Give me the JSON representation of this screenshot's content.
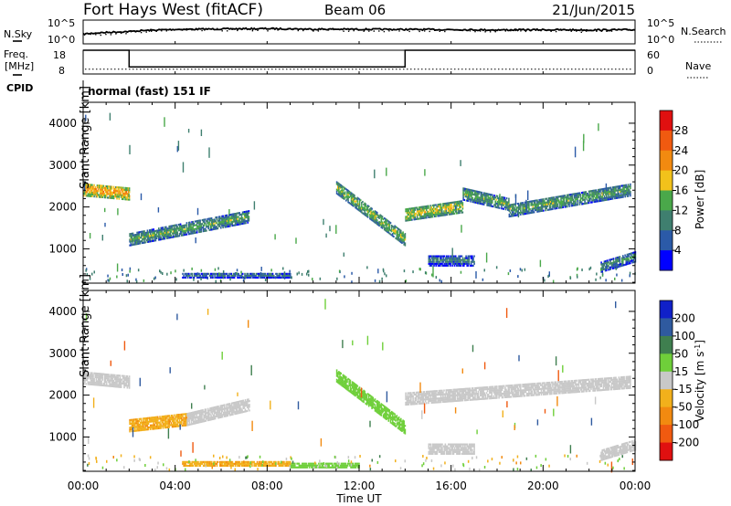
{
  "header": {
    "station": "Fort Hays West (fitACF)",
    "beam": "Beam 06",
    "date": "21/Jun/2015"
  },
  "noise_panel": {
    "left_label": "N.Sky",
    "right_label": "N.Search",
    "left_ticks": [
      "10^5",
      "10^0"
    ],
    "right_ticks": [
      "10^5",
      "10^0"
    ]
  },
  "freq_panel": {
    "label_line1": "Freq.",
    "label_line2": "[MHz]",
    "right_label": "Nave",
    "left_ticks": [
      "18",
      "8"
    ],
    "right_ticks": [
      "60",
      "0"
    ]
  },
  "cpid": {
    "label": "CPID",
    "mode": "normal (fast) 151 IF"
  },
  "power_panel": {
    "ylabel": "Slant Range [km]",
    "y_ticks": [
      "1000",
      "2000",
      "3000",
      "4000"
    ],
    "colorbar_label": "Power [dB]",
    "colorbar_ticks": [
      "4",
      "8",
      "12",
      "16",
      "20",
      "24",
      "28"
    ]
  },
  "velocity_panel": {
    "ylabel": "Slant Range [km]",
    "y_ticks": [
      "1000",
      "2000",
      "3000",
      "4000"
    ],
    "colorbar_label": "Velocity [m s^-1]",
    "colorbar_ticks": [
      "-200",
      "-100",
      "-50",
      "-15",
      "15",
      "50",
      "100",
      "200"
    ]
  },
  "x_axis": {
    "label": "Time UT",
    "ticks": [
      "00:00",
      "04:00",
      "08:00",
      "12:00",
      "16:00",
      "20:00",
      "00:00"
    ]
  },
  "colors": {
    "power_scale": [
      "#0000ff",
      "#2b5aa8",
      "#3f7f6f",
      "#4aa84a",
      "#f2c21b",
      "#f28a10",
      "#f05a10",
      "#e01010"
    ],
    "velocity_scale": [
      "#e01010",
      "#f05a10",
      "#f28a10",
      "#f2b01b",
      "#c8c8c8",
      "#6fcf3a",
      "#3f7f4f",
      "#2f5a9f",
      "#1020c8"
    ]
  },
  "chart_data": [
    {
      "type": "line",
      "title": "N.Sky / N.Search",
      "x": [
        "00:00",
        "02:00",
        "04:00",
        "06:00",
        "08:00",
        "10:00",
        "12:00",
        "14:00",
        "16:00",
        "18:00",
        "20:00",
        "22:00",
        "24:00"
      ],
      "series": [
        {
          "name": "N.Sky",
          "values": [
            100,
            400,
            1200,
            1500,
            1800,
            1400,
            1300,
            1200,
            1100,
            900,
            1000,
            900,
            1000
          ]
        },
        {
          "name": "N.Search",
          "values": [
            80,
            300,
            900,
            1300,
            1600,
            1200,
            1100,
            1000,
            900,
            800,
            850,
            700,
            800
          ]
        }
      ],
      "yscale": "log",
      "ylim": [
        1,
        100000
      ]
    },
    {
      "type": "line",
      "title": "Freq. / Nave",
      "series": [
        {
          "name": "Freq.",
          "x": [
            "00:00",
            "02:00",
            "02:00",
            "14:00",
            "14:00",
            "24:00"
          ],
          "values": [
            18,
            18,
            11,
            11,
            18,
            18
          ]
        },
        {
          "name": "Nave",
          "x": [
            "00:00",
            "24:00"
          ],
          "values": [
            12,
            12
          ]
        }
      ],
      "ylim": [
        8,
        18
      ],
      "y2lim": [
        0,
        60
      ]
    },
    {
      "type": "heatmap",
      "title": "Power",
      "xlabel": "Time UT",
      "ylabel": "Slant Range [km]",
      "xlim": [
        0,
        24
      ],
      "ylim": [
        180,
        4500
      ],
      "colorbar": {
        "label": "Power [dB]",
        "range": [
          0,
          32
        ],
        "ticks": [
          4,
          8,
          12,
          16,
          20,
          24,
          28
        ]
      },
      "echo_bands": [
        {
          "t_start": 0.0,
          "t_end": 2.0,
          "range_start_km": 2400,
          "range_end_km": 2300,
          "width_km": 300,
          "power_db": 22
        },
        {
          "t_start": 2.0,
          "t_end": 7.2,
          "range_start_km": 1200,
          "range_end_km": 1750,
          "width_km": 280,
          "power_db": 14
        },
        {
          "t_start": 11.0,
          "t_end": 14.0,
          "range_start_km": 2450,
          "range_end_km": 1200,
          "width_km": 300,
          "power_db": 16
        },
        {
          "t_start": 14.0,
          "t_end": 16.5,
          "range_start_km": 1800,
          "range_end_km": 2000,
          "width_km": 300,
          "power_db": 18
        },
        {
          "t_start": 16.5,
          "t_end": 18.5,
          "range_start_km": 2300,
          "range_end_km": 2050,
          "width_km": 300,
          "power_db": 14
        },
        {
          "t_start": 18.5,
          "t_end": 23.8,
          "range_start_km": 1900,
          "range_end_km": 2400,
          "width_km": 300,
          "power_db": 14
        },
        {
          "t_start": 15.0,
          "t_end": 17.0,
          "range_start_km": 700,
          "range_end_km": 700,
          "width_km": 250,
          "power_db": 10
        },
        {
          "t_start": 22.5,
          "t_end": 24.0,
          "range_start_km": 550,
          "range_end_km": 800,
          "width_km": 250,
          "power_db": 12
        },
        {
          "t_start": 4.3,
          "t_end": 9.0,
          "range_start_km": 350,
          "range_end_km": 350,
          "width_km": 120,
          "power_db": 10
        }
      ]
    },
    {
      "type": "heatmap",
      "title": "Velocity",
      "xlabel": "Time UT",
      "ylabel": "Slant Range [km]",
      "xlim": [
        0,
        24
      ],
      "ylim": [
        180,
        4500
      ],
      "colorbar": {
        "label": "Velocity [m s^-1]",
        "range": [
          -250,
          250
        ],
        "ticks": [
          -200,
          -100,
          -50,
          -15,
          15,
          50,
          100,
          200
        ]
      },
      "echo_bands": [
        {
          "t_start": 0.0,
          "t_end": 2.0,
          "range_start_km": 2400,
          "range_end_km": 2300,
          "width_km": 300,
          "velocity": 0
        },
        {
          "t_start": 2.0,
          "t_end": 4.5,
          "range_start_km": 1250,
          "range_end_km": 1400,
          "width_km": 280,
          "velocity": -40
        },
        {
          "t_start": 4.5,
          "t_end": 7.2,
          "range_start_km": 1400,
          "range_end_km": 1750,
          "width_km": 280,
          "velocity": 0
        },
        {
          "t_start": 11.0,
          "t_end": 14.0,
          "range_start_km": 2450,
          "range_end_km": 1200,
          "width_km": 300,
          "velocity": 30
        },
        {
          "t_start": 14.0,
          "t_end": 23.8,
          "range_start_km": 1900,
          "range_end_km": 2300,
          "width_km": 300,
          "velocity": 0
        },
        {
          "t_start": 15.0,
          "t_end": 17.0,
          "range_start_km": 700,
          "range_end_km": 700,
          "width_km": 250,
          "velocity": 0
        },
        {
          "t_start": 22.5,
          "t_end": 24.0,
          "range_start_km": 550,
          "range_end_km": 800,
          "width_km": 250,
          "velocity": 0
        },
        {
          "t_start": 4.3,
          "t_end": 9.0,
          "range_start_km": 350,
          "range_end_km": 350,
          "width_km": 120,
          "velocity": -40
        },
        {
          "t_start": 9.0,
          "t_end": 12.0,
          "range_start_km": 300,
          "range_end_km": 300,
          "width_km": 100,
          "velocity": 30
        }
      ]
    }
  ]
}
